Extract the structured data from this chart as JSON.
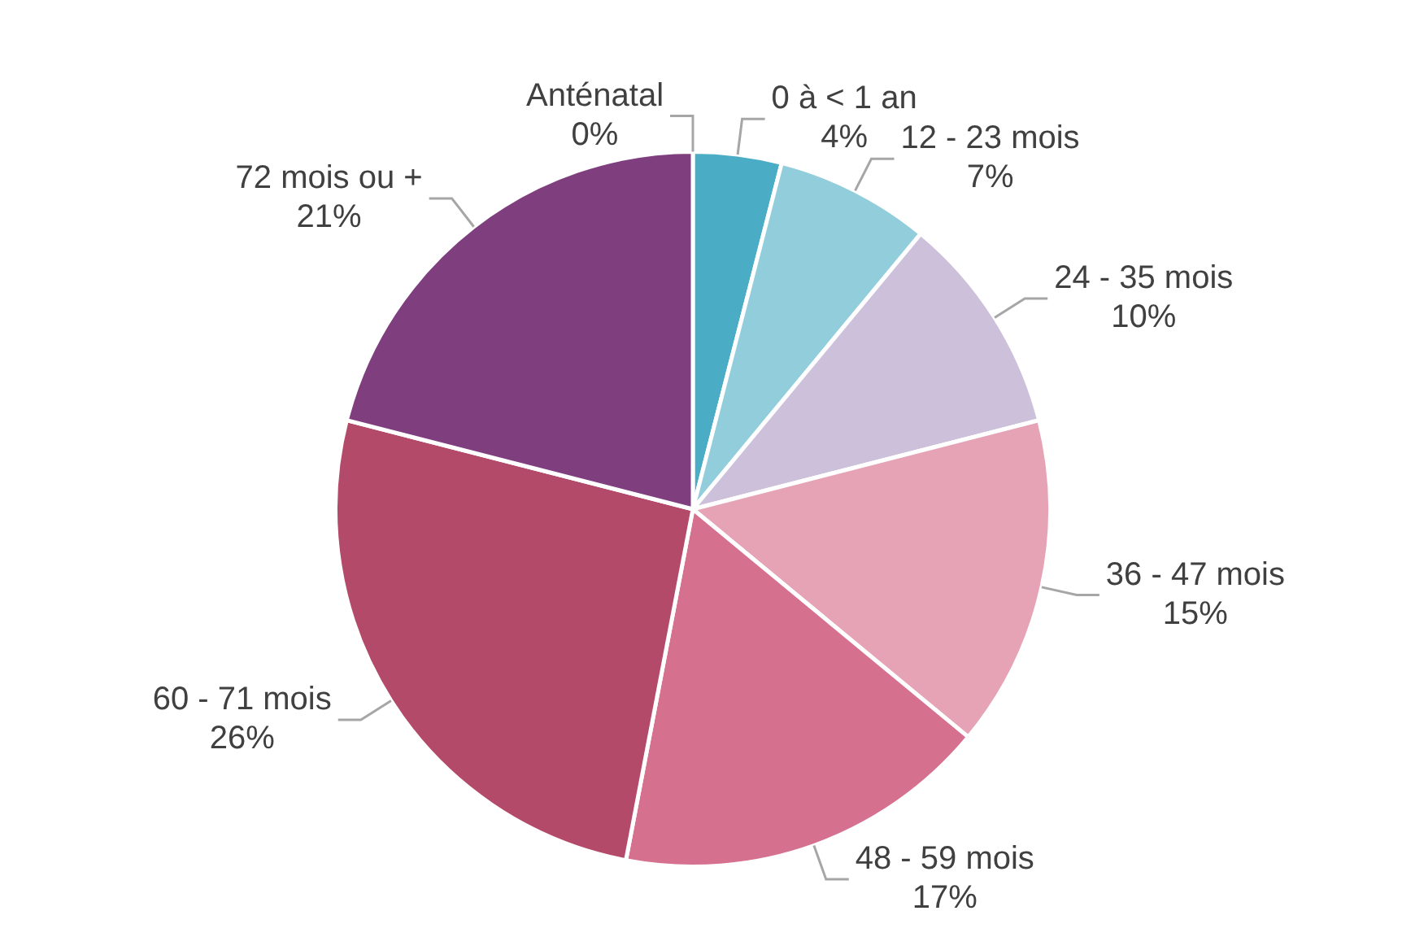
{
  "chart_data": {
    "type": "pie",
    "categories": [
      "Anténatal",
      "0 à < 1 an",
      "12 - 23 mois",
      "24 - 35 mois",
      "36 - 47 mois",
      "48 - 59 mois",
      "60 - 71 mois",
      "72 mois ou +"
    ],
    "values": [
      0,
      4,
      7,
      10,
      15,
      17,
      26,
      21
    ],
    "colors": [
      "#31859c",
      "#4bacc6",
      "#92cddc",
      "#ccc0da",
      "#e6a3b6",
      "#d6708f",
      "#b44a6a",
      "#7f3f7f"
    ],
    "value_labels": [
      "0%",
      "4%",
      "7%",
      "10%",
      "15%",
      "17%",
      "26%",
      "21%"
    ]
  }
}
